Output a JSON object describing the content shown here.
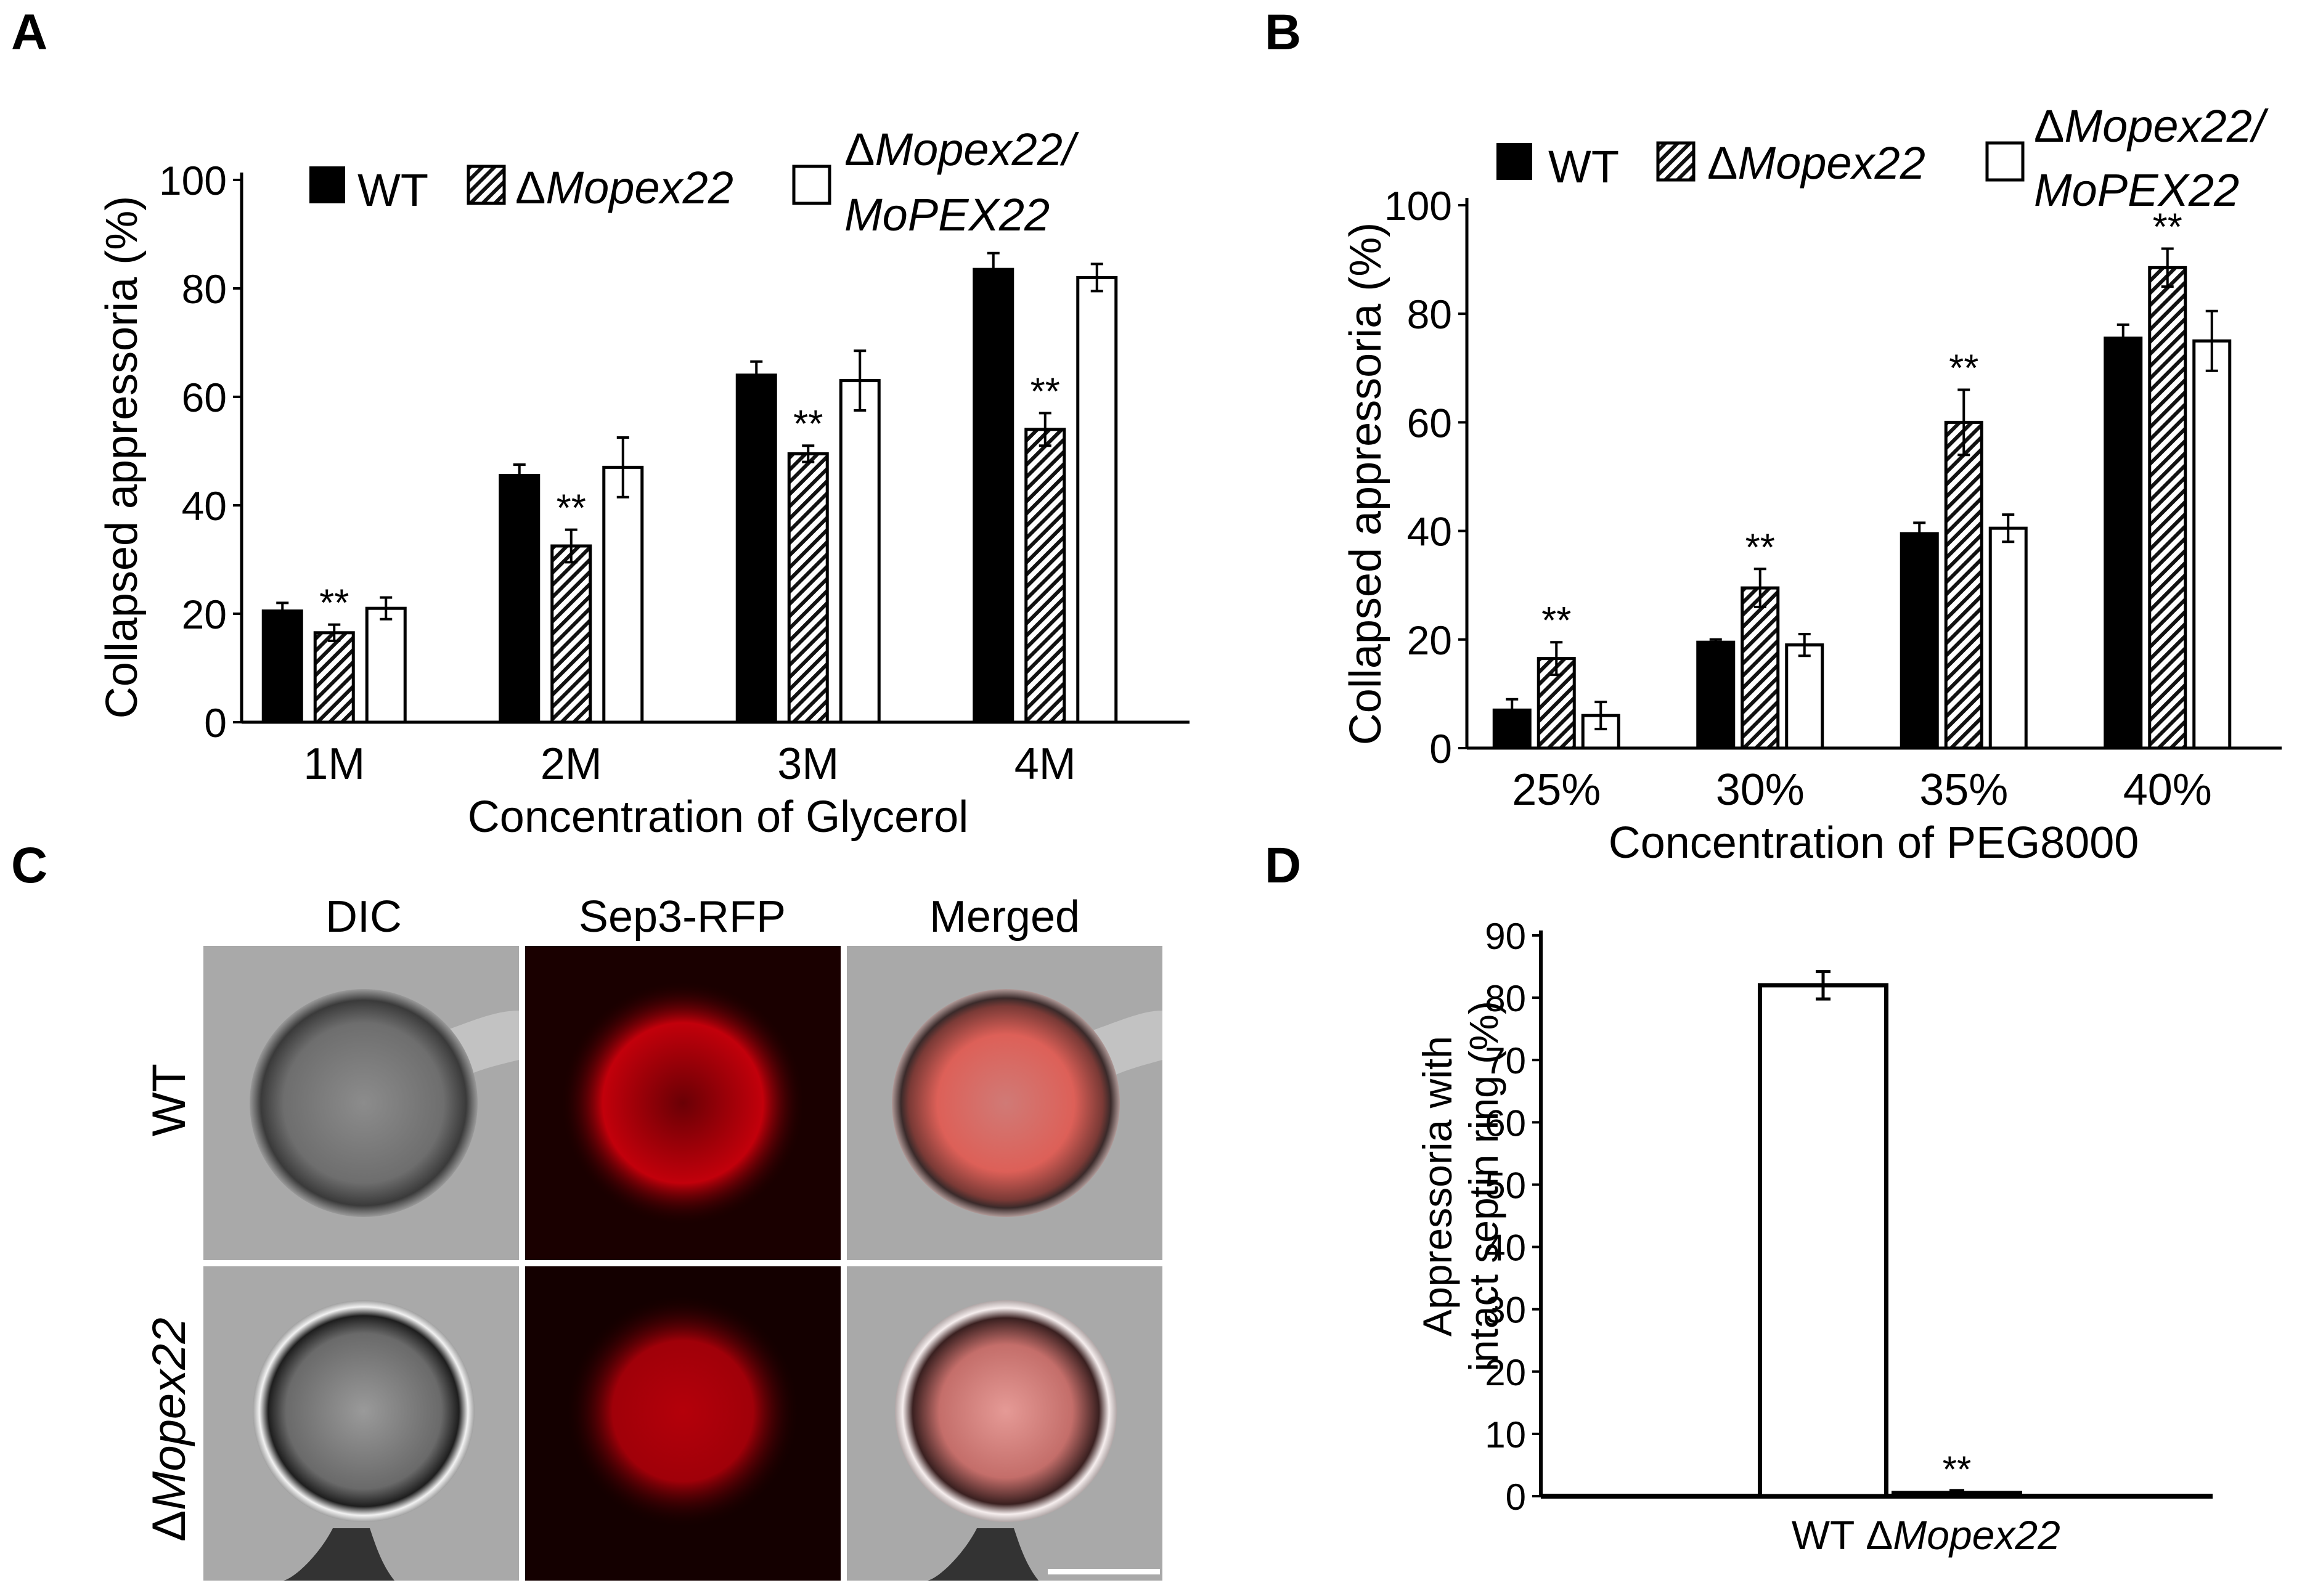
{
  "panels": {
    "A": "A",
    "B": "B",
    "C": "C",
    "D": "D"
  },
  "legend": {
    "wt": "WT",
    "delta": "Δ",
    "mutant": "Mopex22",
    "comp_line1": "Mopex22/",
    "comp_line2": "MoPEX22"
  },
  "sig": "**",
  "chart_data": [
    {
      "id": "A",
      "type": "bar",
      "title": "",
      "xlabel": "Concentration of Glycerol",
      "ylabel": "Collapsed appressoria (%)",
      "ylim": [
        0,
        100
      ],
      "yticks": [
        "0",
        "20",
        "40",
        "60",
        "80",
        "100"
      ],
      "categories": [
        "1M",
        "2M",
        "3M",
        "4M"
      ],
      "series": [
        {
          "name": "WT",
          "values": [
            20.5,
            45.5,
            64,
            83.5
          ],
          "errors": [
            1.5,
            2,
            2.5,
            3
          ]
        },
        {
          "name": "ΔMopex22",
          "values": [
            16.5,
            32.5,
            49.5,
            54
          ],
          "errors": [
            1.5,
            3,
            1.5,
            3
          ],
          "significant": [
            true,
            true,
            true,
            true
          ]
        },
        {
          "name": "ΔMopex22/MoPEX22",
          "values": [
            21,
            47,
            63,
            82
          ],
          "errors": [
            2,
            5.5,
            5.5,
            2.5
          ]
        }
      ]
    },
    {
      "id": "B",
      "type": "bar",
      "title": "",
      "xlabel": "Concentration of PEG8000",
      "ylabel": "Collapsed appressoria (%)",
      "ylim": [
        0,
        100
      ],
      "yticks": [
        "0",
        "20",
        "40",
        "60",
        "80",
        "100"
      ],
      "categories": [
        "25%",
        "30%",
        "35%",
        "40%"
      ],
      "series": [
        {
          "name": "WT",
          "values": [
            7,
            19.5,
            39.5,
            75.5
          ],
          "errors": [
            2,
            0.5,
            2,
            2.5
          ]
        },
        {
          "name": "ΔMopex22",
          "values": [
            16.5,
            29.5,
            60,
            88.5
          ],
          "errors": [
            3,
            3.5,
            6,
            3.5
          ],
          "significant": [
            true,
            true,
            true,
            true
          ]
        },
        {
          "name": "ΔMopex22/MoPEX22",
          "values": [
            6,
            19,
            40.5,
            75
          ],
          "errors": [
            2.5,
            2,
            2.5,
            5.5
          ]
        }
      ]
    },
    {
      "id": "D",
      "type": "bar",
      "title": "",
      "xlabel": "",
      "ylabel_line1": "Appressoria with",
      "ylabel_line2": "intact septin ring (%)",
      "ylim": [
        0,
        90
      ],
      "yticks": [
        "0",
        "10",
        "20",
        "30",
        "40",
        "50",
        "60",
        "70",
        "80",
        "90"
      ],
      "categories": [
        "WT",
        "ΔMopex22"
      ],
      "cat_delta": "Δ",
      "cat_mutant": "Mopex22",
      "values": [
        82,
        0.5
      ],
      "errors": [
        2.2,
        0.4
      ],
      "significant": [
        false,
        true
      ]
    }
  ],
  "micrograph": {
    "columns": [
      "DIC",
      "Sep3-RFP",
      "Merged"
    ],
    "row1": "WT",
    "row2_delta": "Δ",
    "row2_mutant": "Mopex22"
  },
  "colors": {
    "wt": "#000000",
    "complemented": "#ffffff",
    "rfp": "#c0000a"
  }
}
